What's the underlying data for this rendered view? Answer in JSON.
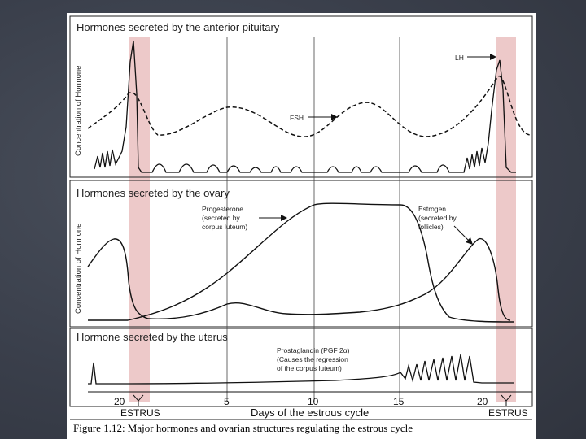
{
  "panel_top": {
    "title": "Hormones secreted by the anterior pituitary",
    "ylabel": "Concentration of Hormone",
    "labels": {
      "lh": "LH",
      "fsh": "FSH"
    }
  },
  "panel_middle": {
    "title": "Hormones secreted by the ovary",
    "ylabel": "Concentration of Hormone",
    "progesterone": [
      "Progesterone",
      "(secreted by",
      "corpus luteum)"
    ],
    "estrogen": [
      "Estrogen",
      "(secreted by",
      "follicles)"
    ]
  },
  "panel_bottom": {
    "title": "Hormone secreted by the uterus",
    "prostaglandin": [
      "Prostaglandin (PGF 2α)",
      "(Causes the regression",
      "of the corpus luteum)"
    ]
  },
  "axis": {
    "ticks": [
      "20",
      "5",
      "10",
      "15",
      "20"
    ],
    "estrus_left": "ESTRUS",
    "estrus_right": "ESTRUS",
    "xlabel": "Days of the estrous cycle"
  },
  "caption": "Figure 1.12:  Major hormones and ovarian structures regulating the estrous cycle",
  "colors": {
    "estrus_band": "#e7b7b7",
    "ink": "#111111",
    "slide_background": "#3a3f4b"
  }
}
